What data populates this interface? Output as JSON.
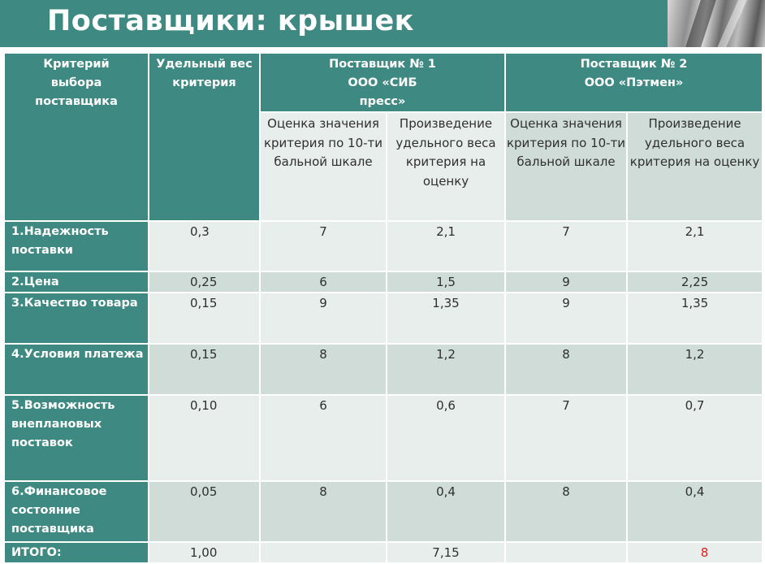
{
  "header": {
    "title": "Поставщики: крышек"
  },
  "table": {
    "col_criterion": "Критерий выбора поставщика",
    "col_weight": "Удельный вес критерия",
    "supplier1": {
      "title": "Поставщик № 1 ООО «СИБ пресс»",
      "col_score": "Оценка значения критерия по 10-ти бальной шкале",
      "col_product": "Произведение удельного веса критерия на оценку"
    },
    "supplier2": {
      "title": "Поставщик № 2 ООО «Пэтмен»",
      "col_score": "Оценка значения критерия по 10-ти бальной шкале",
      "col_product": "Произведение удельного веса критерия на оценку"
    },
    "rows": [
      {
        "criterion": "1.Надежность поставки",
        "weight": "0,3",
        "s1_score": "7",
        "s1_product": "2,1",
        "s2_score": "7",
        "s2_product": "2,1"
      },
      {
        "criterion": "2.Цена",
        "weight": "0,25",
        "s1_score": "6",
        "s1_product": "1,5",
        "s2_score": "9",
        "s2_product": "2,25"
      },
      {
        "criterion": "3.Качество товара",
        "weight": "0,15",
        "s1_score": "9",
        "s1_product": "1,35",
        "s2_score": "9",
        "s2_product": "1,35"
      },
      {
        "criterion": "4.Условия платежа",
        "weight": "0,15",
        "s1_score": "8",
        "s1_product": "1,2",
        "s2_score": "8",
        "s2_product": "1,2"
      },
      {
        "criterion": "5.Возможность внеплановых поставок",
        "weight": "0,10",
        "s1_score": "6",
        "s1_product": "0,6",
        "s2_score": "7",
        "s2_product": "0,7"
      },
      {
        "criterion": "6.Финансовое состояние поставщика",
        "weight": "0,05",
        "s1_score": "8",
        "s1_product": "0,4",
        "s2_score": "8",
        "s2_product": "0,4"
      }
    ],
    "total": {
      "label": "ИТОГО:",
      "weight": "1,00",
      "s1_product": "7,15",
      "s2_product": "8"
    }
  },
  "colors": {
    "header_teal": "#3e8a82",
    "cell_light": "#e8eeeb",
    "cell_dark": "#cfdcd8",
    "highlight_red": "#e02020"
  }
}
